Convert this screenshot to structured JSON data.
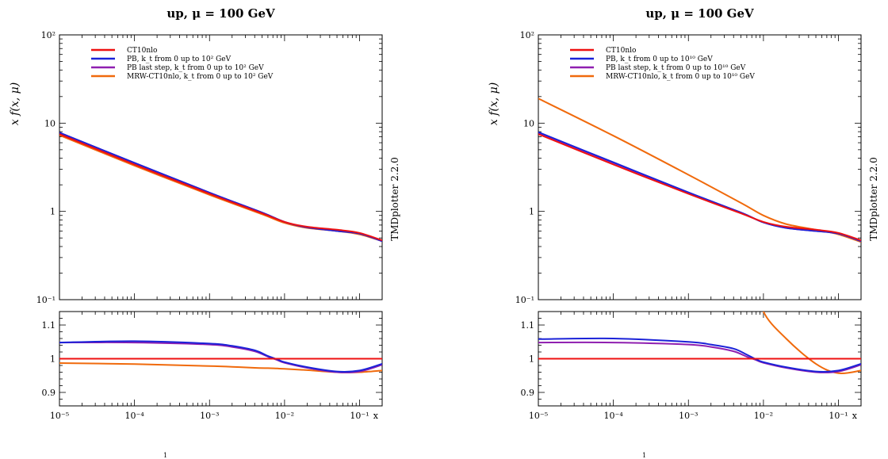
{
  "side_label": "TMDplotter 2.2.0",
  "page_number": "1",
  "colors": {
    "CT10nlo": "#ee1111",
    "PB": "#1b22d8",
    "PB_last": "#8f1fb0",
    "MRW": "#f06a0c"
  },
  "chart_data": [
    {
      "type": "line",
      "title": "up, μ = 100 GeV",
      "ylabel": "x f(x, μ)",
      "xlabel": "x",
      "xscale": "log",
      "yscale": "log",
      "xlim": [
        1e-05,
        0.2
      ],
      "ylim": [
        0.1,
        100
      ],
      "x_tick_labels": [
        "10⁻⁵",
        "10⁻⁴",
        "10⁻³",
        "10⁻²",
        "10⁻¹"
      ],
      "y_tick_labels": [
        "10⁻¹",
        "1",
        "10",
        "10²"
      ],
      "legend_position": "top-left",
      "x": [
        1e-05,
        0.0001,
        0.001,
        0.005,
        0.01,
        0.02,
        0.05,
        0.1,
        0.2
      ],
      "series": [
        {
          "name": "CT10nlo",
          "values": [
            7.5,
            3.4,
            1.58,
            0.95,
            0.76,
            0.67,
            0.62,
            0.57,
            0.47
          ]
        },
        {
          "name": "PB, k_t from 0 up to 10² GeV",
          "values": [
            7.8,
            3.55,
            1.63,
            0.97,
            0.76,
            0.66,
            0.6,
            0.56,
            0.46
          ]
        },
        {
          "name": "PB last step, k_t from 0 up to 10² GeV",
          "values": [
            7.8,
            3.55,
            1.63,
            0.97,
            0.76,
            0.66,
            0.6,
            0.56,
            0.46
          ]
        },
        {
          "name": "MRW-CT10nlo, k_t from 0 up to 10² GeV",
          "values": [
            7.3,
            3.3,
            1.54,
            0.93,
            0.74,
            0.65,
            0.6,
            0.55,
            0.46
          ]
        }
      ],
      "ratio": {
        "ylim": [
          0.86,
          1.14
        ],
        "y_tick_labels": [
          "0.9",
          "1",
          "1.1"
        ],
        "x": [
          1e-05,
          0.0001,
          0.001,
          0.002,
          0.004,
          0.006,
          0.008,
          0.01,
          0.02,
          0.05,
          0.1,
          0.2
        ],
        "series": [
          {
            "name": "CT10nlo",
            "values": [
              1.0,
              1.0,
              1.0,
              1.0,
              1.0,
              1.0,
              1.0,
              1.0,
              1.0,
              1.0,
              1.0,
              1.0
            ]
          },
          {
            "name": "PB, k_t from 0 up to 10² GeV",
            "values": [
              1.048,
              1.052,
              1.045,
              1.038,
              1.025,
              1.008,
              0.998,
              0.99,
              0.975,
              0.962,
              0.965,
              0.985
            ]
          },
          {
            "name": "PB last step, k_t from 0 up to 10² GeV",
            "values": [
              1.048,
              1.048,
              1.042,
              1.035,
              1.022,
              1.006,
              0.996,
              0.988,
              0.973,
              0.96,
              0.962,
              0.982
            ]
          },
          {
            "name": "MRW-CT10nlo, k_t from 0 up to 10² GeV",
            "values": [
              0.987,
              0.984,
              0.978,
              0.976,
              0.973,
              0.972,
              0.971,
              0.97,
              0.966,
              0.96,
              0.96,
              0.965
            ]
          }
        ]
      }
    },
    {
      "type": "line",
      "title": "up, μ = 100 GeV",
      "ylabel": "x f(x, μ)",
      "xlabel": "x",
      "xscale": "log",
      "yscale": "log",
      "xlim": [
        1e-05,
        0.2
      ],
      "ylim": [
        0.1,
        100
      ],
      "x_tick_labels": [
        "10⁻⁵",
        "10⁻⁴",
        "10⁻³",
        "10⁻²",
        "10⁻¹"
      ],
      "y_tick_labels": [
        "10⁻¹",
        "1",
        "10",
        "10²"
      ],
      "legend_position": "top-left",
      "x": [
        1e-05,
        0.0001,
        0.001,
        0.005,
        0.01,
        0.02,
        0.05,
        0.1,
        0.2
      ],
      "series": [
        {
          "name": "CT10nlo",
          "values": [
            7.5,
            3.4,
            1.58,
            0.95,
            0.76,
            0.67,
            0.62,
            0.57,
            0.47
          ]
        },
        {
          "name": "PB, k_t from 0 up to 10¹⁰ GeV",
          "values": [
            7.9,
            3.6,
            1.64,
            0.97,
            0.75,
            0.65,
            0.6,
            0.56,
            0.46
          ]
        },
        {
          "name": "PB last step, k_t from 0 up to 10¹⁰ GeV",
          "values": [
            7.8,
            3.55,
            1.63,
            0.97,
            0.75,
            0.65,
            0.6,
            0.56,
            0.46
          ]
        },
        {
          "name": "MRW-CT10nlo, k_t from 0 up to 10¹⁰ GeV",
          "values": [
            19.0,
            7.2,
            2.6,
            1.25,
            0.9,
            0.72,
            0.62,
            0.55,
            0.45
          ]
        }
      ],
      "ratio": {
        "ylim": [
          0.86,
          1.14
        ],
        "y_tick_labels": [
          "0.9",
          "1",
          "1.1"
        ],
        "x": [
          1e-05,
          0.0001,
          0.001,
          0.002,
          0.004,
          0.006,
          0.008,
          0.01,
          0.02,
          0.05,
          0.1,
          0.2
        ],
        "series": [
          {
            "name": "CT10nlo",
            "values": [
              1.0,
              1.0,
              1.0,
              1.0,
              1.0,
              1.0,
              1.0,
              1.0,
              1.0,
              1.0,
              1.0,
              1.0
            ]
          },
          {
            "name": "PB, k_t from 0 up to 10¹⁰ GeV",
            "values": [
              1.058,
              1.06,
              1.05,
              1.042,
              1.03,
              1.012,
              0.998,
              0.99,
              0.975,
              0.962,
              0.965,
              0.985
            ]
          },
          {
            "name": "PB last step, k_t from 0 up to 10¹⁰ GeV",
            "values": [
              1.048,
              1.048,
              1.042,
              1.035,
              1.022,
              1.006,
              0.996,
              0.988,
              0.973,
              0.96,
              0.962,
              0.982
            ]
          },
          {
            "name": "MRW-CT10nlo, k_t from 0 up to 10¹⁰ GeV",
            "values": [
              null,
              null,
              null,
              null,
              null,
              null,
              1.25,
              1.14,
              1.06,
              0.985,
              0.957,
              0.965
            ]
          }
        ]
      }
    }
  ]
}
